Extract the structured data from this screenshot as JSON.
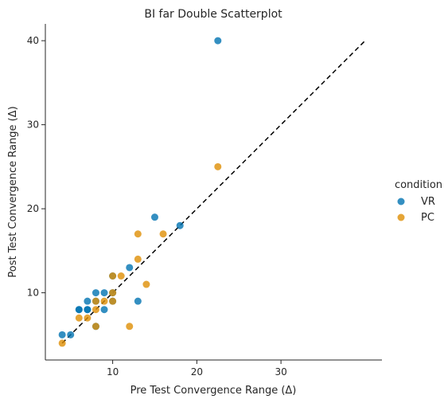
{
  "chart_data": {
    "type": "scatter",
    "title": "BI far Double Scatterplot",
    "xlabel": "Pre Test Convergence Range (Δ)",
    "ylabel": "Post Test Convergence Range (Δ)",
    "xlim": [
      2,
      42
    ],
    "ylim": [
      2,
      42
    ],
    "xticks": [
      10,
      20,
      30
    ],
    "yticks": [
      10,
      20,
      30,
      40
    ],
    "grid": false,
    "legend": {
      "title": "condition",
      "placement": "right"
    },
    "reference_line": {
      "from": [
        4,
        4
      ],
      "to": [
        40,
        40
      ],
      "style": "dashed",
      "color": "#000000"
    },
    "series": [
      {
        "name": "VR",
        "color": "#0173b2",
        "points": [
          [
            4,
            5
          ],
          [
            5,
            5
          ],
          [
            6,
            8
          ],
          [
            6,
            8
          ],
          [
            7,
            8
          ],
          [
            7,
            9
          ],
          [
            7,
            8
          ],
          [
            8,
            10
          ],
          [
            8,
            9
          ],
          [
            8,
            6
          ],
          [
            9,
            8
          ],
          [
            9,
            10
          ],
          [
            10,
            12
          ],
          [
            10,
            9
          ],
          [
            10,
            10
          ],
          [
            12,
            13
          ],
          [
            13,
            9
          ],
          [
            15,
            19
          ],
          [
            18,
            18
          ],
          [
            22.5,
            40
          ]
        ]
      },
      {
        "name": "PC",
        "color": "#de8f05",
        "points": [
          [
            4,
            4
          ],
          [
            6,
            7
          ],
          [
            7,
            7
          ],
          [
            8,
            6
          ],
          [
            8,
            8
          ],
          [
            8,
            9
          ],
          [
            9,
            9
          ],
          [
            10,
            10
          ],
          [
            10,
            12
          ],
          [
            10,
            9
          ],
          [
            11,
            12
          ],
          [
            12,
            6
          ],
          [
            13,
            14
          ],
          [
            13,
            17
          ],
          [
            14,
            11
          ],
          [
            16,
            17
          ],
          [
            22.5,
            25
          ]
        ]
      }
    ]
  }
}
